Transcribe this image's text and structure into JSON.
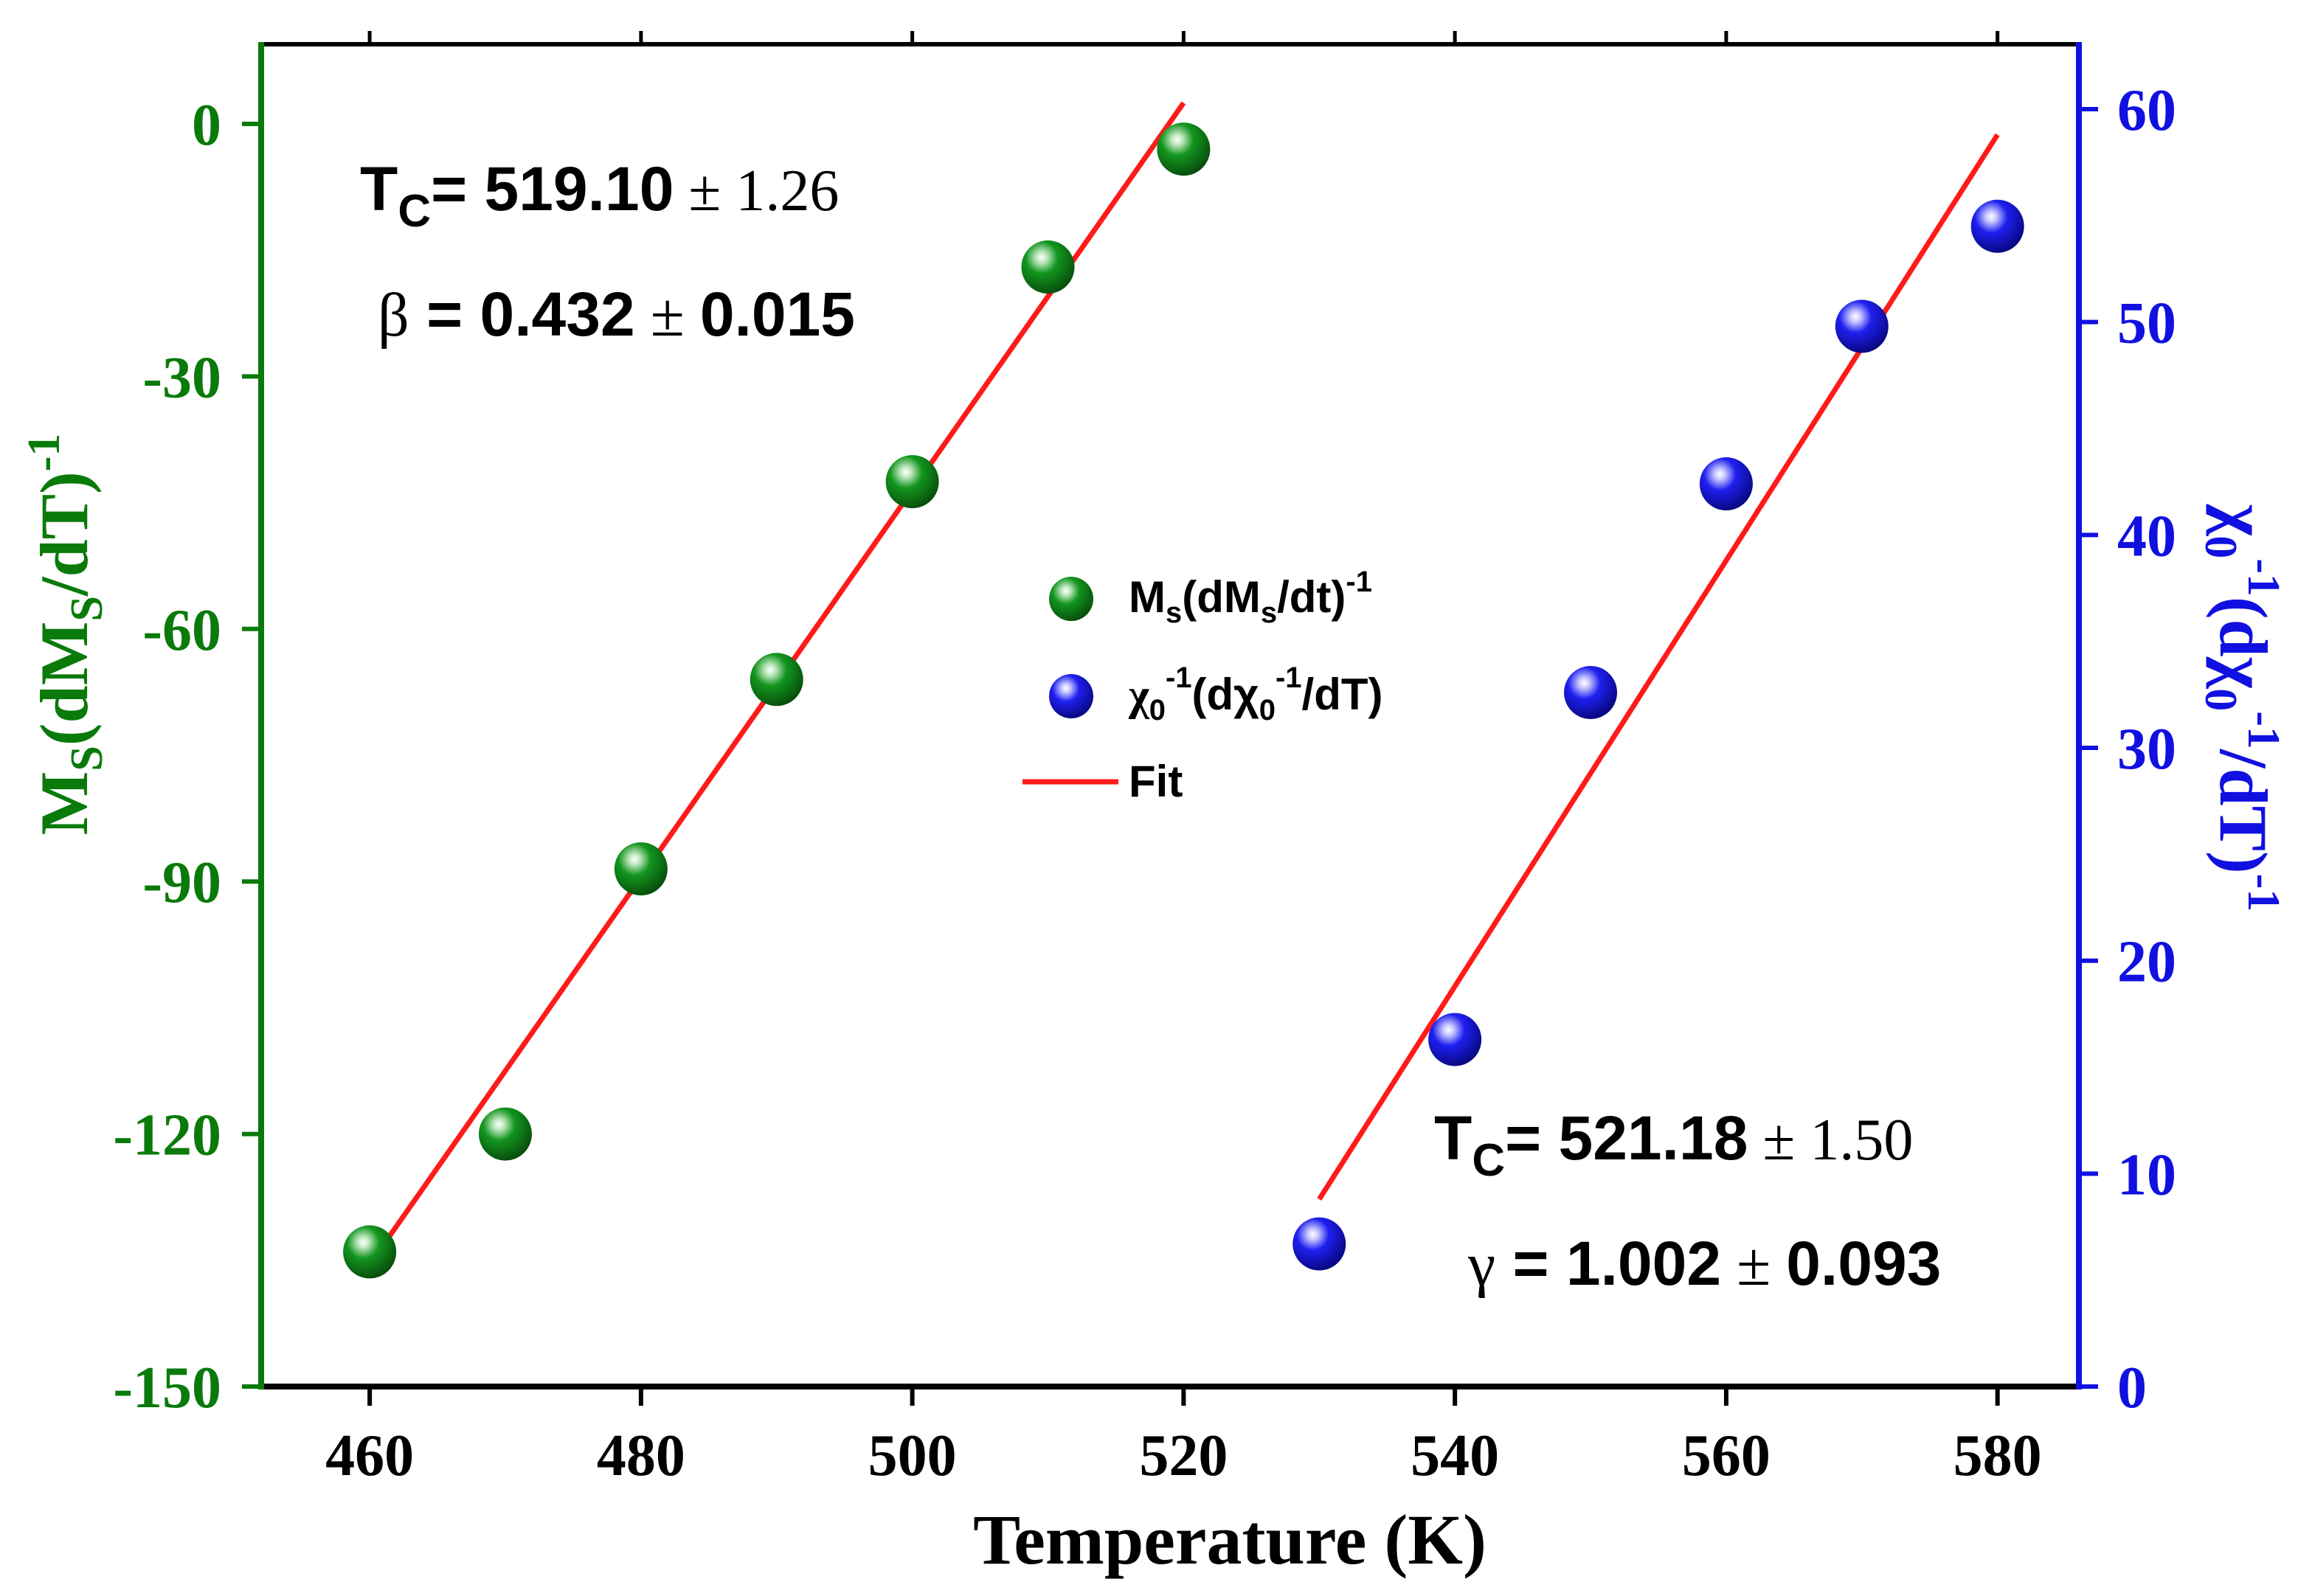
{
  "chart_data": {
    "type": "scatter",
    "xlabel": "Temperature (K)",
    "xlim": [
      452,
      586
    ],
    "x_ticks": [
      460,
      480,
      500,
      520,
      540,
      560,
      580
    ],
    "y_left": {
      "label": {
        "base": "M",
        "sub1": "S",
        "mid": "(dM",
        "sub2": "S",
        "tail": "/dT)",
        "sup": "-1"
      },
      "ylim": [
        -150,
        10
      ],
      "ticks": [
        0,
        -30,
        -60,
        -90,
        -120,
        -150
      ],
      "color": "#0a7a0a"
    },
    "y_right": {
      "label": {
        "chi": "χ",
        "sub": "0",
        "sup1": "-1",
        "mid": "(dχ",
        "sub2": "0",
        "sup2": "-1",
        "tail": "/dT)",
        "sup3": "-1"
      },
      "ylim": [
        0,
        60
      ],
      "ticks": [
        0,
        10,
        20,
        30,
        40,
        50,
        60
      ],
      "color": "#1010e0"
    },
    "series": [
      {
        "name": "Ms(dMs/dt)-1",
        "axis": "left",
        "color": "#0b8a1a",
        "x": [
          460,
          470,
          480,
          490,
          500,
          510,
          520
        ],
        "y": [
          -134,
          -120,
          -88.5,
          -66,
          -42.5,
          -17,
          -3
        ]
      },
      {
        "name": "χ0-1(dχ0-1/dT)",
        "axis": "right",
        "color": "#1414e6",
        "x": [
          530,
          540,
          550,
          560,
          570,
          580
        ],
        "y": [
          6.7,
          16.3,
          32.6,
          42.4,
          49.8,
          54.5
        ]
      }
    ],
    "fits": [
      {
        "axis": "left",
        "x": [
          460,
          520
        ],
        "y": [
          -135.5,
          2.5
        ],
        "color": "#ff1a1a"
      },
      {
        "axis": "right",
        "x": [
          530,
          580
        ],
        "y": [
          8.8,
          58.8
        ],
        "color": "#ff1a1a"
      }
    ],
    "legend": {
      "position": "center",
      "items": [
        {
          "kind": "green-ball",
          "text": "M",
          "sub": "s",
          "mid": "(dM",
          "sub2": "s",
          "tail": "/dt)",
          "sup": "-1"
        },
        {
          "kind": "blue-ball",
          "text": "χ",
          "sub": "0",
          "sup": "-1",
          "mid": "(dχ",
          "sub2": "0",
          "sup2": "-1",
          "tail": "/dT)"
        },
        {
          "kind": "line",
          "text": "Fit"
        }
      ]
    },
    "annotations": [
      {
        "id": "tc1",
        "symbol": "T",
        "sub": "C",
        "eq": "= ",
        "value": "519.10",
        "pm": " ± 1.26"
      },
      {
        "id": "beta",
        "symbol": "β",
        "eq": " = ",
        "value": "0.432",
        "pm": " ± ",
        "err": "0.015"
      },
      {
        "id": "tc2",
        "symbol": "T",
        "sub": "C",
        "eq": "= ",
        "value": "521.18",
        "pm": " ± 1.50"
      },
      {
        "id": "gamma",
        "symbol": "γ",
        "eq": " = ",
        "value": "1.002",
        "pm": " ± ",
        "err": "0.093"
      }
    ]
  }
}
